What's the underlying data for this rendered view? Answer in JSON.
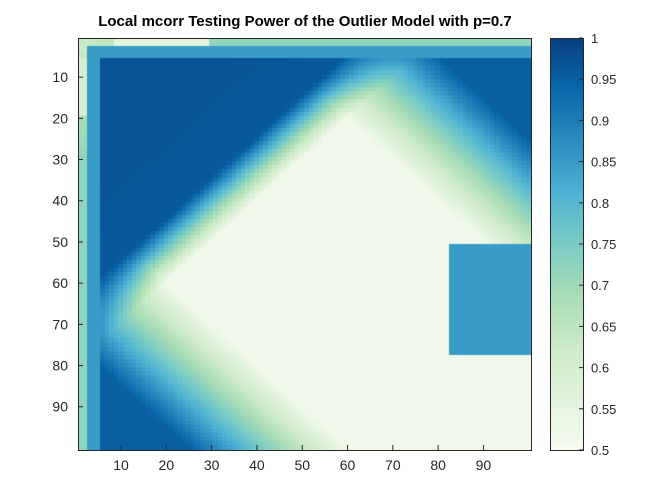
{
  "chart_data": {
    "type": "heatmap",
    "title": "Local mcorr Testing Power of the Outlier Model with p=0.7",
    "xlabel": "",
    "ylabel": "",
    "xlim": [
      1,
      100
    ],
    "ylim": [
      1,
      100
    ],
    "y_direction": "top-to-bottom",
    "x_ticks": [
      10,
      20,
      30,
      40,
      50,
      60,
      70,
      80,
      90
    ],
    "y_ticks": [
      10,
      20,
      30,
      40,
      50,
      60,
      70,
      80,
      90
    ],
    "colorbar": {
      "range": [
        0.5,
        1
      ],
      "ticks": [
        0.5,
        0.55,
        0.6,
        0.65,
        0.7,
        0.75,
        0.8,
        0.85,
        0.9,
        0.95,
        1
      ],
      "labels": [
        "0.5",
        "0.55",
        "0.6",
        "0.65",
        "0.7",
        "0.75",
        "0.8",
        "0.85",
        "0.9",
        "0.95",
        "1"
      ],
      "placement": "right",
      "colors": [
        "#f7fcf0",
        "#e0f3db",
        "#ccebc5",
        "#a8ddb5",
        "#7bccc4",
        "#4eb3d3",
        "#2b8cbe",
        "#0868ac",
        "#084081"
      ]
    },
    "grid_resolution": 100,
    "surface_description": {
      "low_power_region": "diagonal band from about (35,95) to (95,35), value about 0.5",
      "high_power_region": "upper-left corner rows/cols 5-30, value about 0.95-1.0",
      "edges": "row 1 and column 1 lighter, about 0.6-0.75",
      "bottom_right_corner": "light, about 0.55-0.6"
    }
  },
  "axes": {
    "x_tick_labels": [
      "10",
      "20",
      "30",
      "40",
      "50",
      "60",
      "70",
      "80",
      "90"
    ],
    "y_tick_labels": [
      "10",
      "20",
      "30",
      "40",
      "50",
      "60",
      "70",
      "80",
      "90"
    ]
  }
}
